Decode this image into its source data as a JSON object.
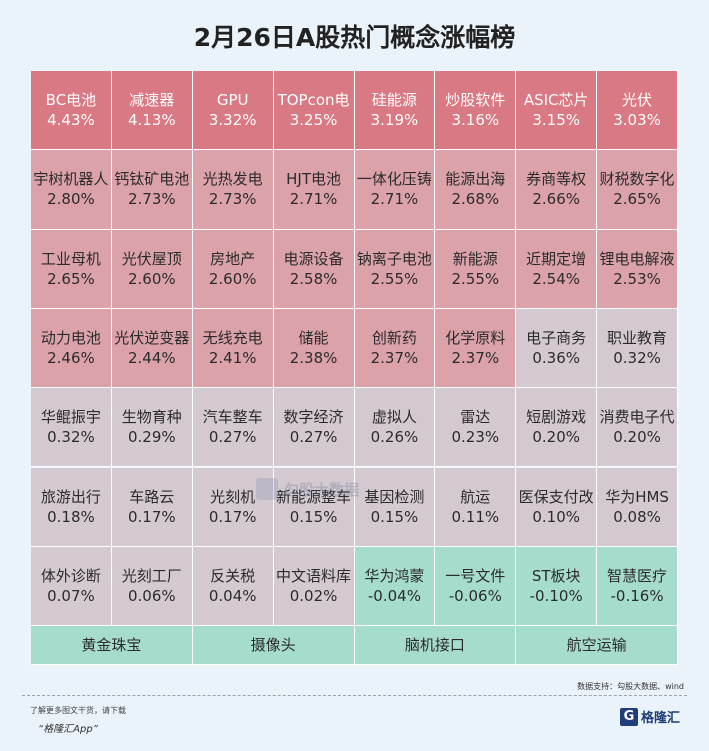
{
  "title": "2月26日A股热门概念涨幅榜",
  "colors": {
    "hot": "#d97983",
    "warm": "#dca2aa",
    "mild": "#d4c9d0",
    "neg": "#a6dcce",
    "flat": "#a6dcce",
    "background": "#eaf2fa"
  },
  "chart_data": {
    "type": "heatmap",
    "unit": "%",
    "cells": [
      {
        "name": "BC电池",
        "pct": "4.43%",
        "value": 4.43
      },
      {
        "name": "减速器",
        "pct": "4.13%",
        "value": 4.13
      },
      {
        "name": "GPU",
        "pct": "3.32%",
        "value": 3.32
      },
      {
        "name": "TOPcon电",
        "pct": "3.25%",
        "value": 3.25
      },
      {
        "name": "硅能源",
        "pct": "3.19%",
        "value": 3.19
      },
      {
        "name": "炒股软件",
        "pct": "3.16%",
        "value": 3.16
      },
      {
        "name": "ASIC芯片",
        "pct": "3.15%",
        "value": 3.15
      },
      {
        "name": "光伏",
        "pct": "3.03%",
        "value": 3.03
      },
      {
        "name": "宇树机器人",
        "pct": "2.80%",
        "value": 2.8
      },
      {
        "name": "钙钛矿电池",
        "pct": "2.73%",
        "value": 2.73
      },
      {
        "name": "光热发电",
        "pct": "2.73%",
        "value": 2.73
      },
      {
        "name": "HJT电池",
        "pct": "2.71%",
        "value": 2.71
      },
      {
        "name": "一体化压铸",
        "pct": "2.71%",
        "value": 2.71
      },
      {
        "name": "能源出海",
        "pct": "2.68%",
        "value": 2.68
      },
      {
        "name": "券商等权",
        "pct": "2.66%",
        "value": 2.66
      },
      {
        "name": "财税数字化",
        "pct": "2.65%",
        "value": 2.65
      },
      {
        "name": "工业母机",
        "pct": "2.65%",
        "value": 2.65
      },
      {
        "name": "光伏屋顶",
        "pct": "2.60%",
        "value": 2.6
      },
      {
        "name": "房地产",
        "pct": "2.60%",
        "value": 2.6
      },
      {
        "name": "电源设备",
        "pct": "2.58%",
        "value": 2.58
      },
      {
        "name": "钠离子电池",
        "pct": "2.55%",
        "value": 2.55
      },
      {
        "name": "新能源",
        "pct": "2.55%",
        "value": 2.55
      },
      {
        "name": "近期定增",
        "pct": "2.54%",
        "value": 2.54
      },
      {
        "name": "锂电电解液",
        "pct": "2.53%",
        "value": 2.53
      },
      {
        "name": "动力电池",
        "pct": "2.46%",
        "value": 2.46
      },
      {
        "name": "光伏逆变器",
        "pct": "2.44%",
        "value": 2.44
      },
      {
        "name": "无线充电",
        "pct": "2.41%",
        "value": 2.41
      },
      {
        "name": "储能",
        "pct": "2.38%",
        "value": 2.38
      },
      {
        "name": "创新药",
        "pct": "2.37%",
        "value": 2.37
      },
      {
        "name": "化学原料",
        "pct": "2.37%",
        "value": 2.37
      },
      {
        "name": "电子商务",
        "pct": "0.36%",
        "value": 0.36
      },
      {
        "name": "职业教育",
        "pct": "0.32%",
        "value": 0.32
      },
      {
        "name": "华鲲振宇",
        "pct": "0.32%",
        "value": 0.32
      },
      {
        "name": "生物育种",
        "pct": "0.29%",
        "value": 0.29
      },
      {
        "name": "汽车整车",
        "pct": "0.27%",
        "value": 0.27
      },
      {
        "name": "数字经济",
        "pct": "0.27%",
        "value": 0.27
      },
      {
        "name": "虚拟人",
        "pct": "0.26%",
        "value": 0.26
      },
      {
        "name": "雷达",
        "pct": "0.23%",
        "value": 0.23
      },
      {
        "name": "短剧游戏",
        "pct": "0.20%",
        "value": 0.2
      },
      {
        "name": "消费电子代",
        "pct": "0.20%",
        "value": 0.2
      },
      {
        "name": "旅游出行",
        "pct": "0.18%",
        "value": 0.18
      },
      {
        "name": "车路云",
        "pct": "0.17%",
        "value": 0.17
      },
      {
        "name": "光刻机",
        "pct": "0.17%",
        "value": 0.17
      },
      {
        "name": "新能源整车",
        "pct": "0.15%",
        "value": 0.15
      },
      {
        "name": "基因检测",
        "pct": "0.15%",
        "value": 0.15
      },
      {
        "name": "航运",
        "pct": "0.11%",
        "value": 0.11
      },
      {
        "name": "医保支付改",
        "pct": "0.10%",
        "value": 0.1
      },
      {
        "name": "华为HMS",
        "pct": "0.08%",
        "value": 0.08
      },
      {
        "name": "体外诊断",
        "pct": "0.07%",
        "value": 0.07
      },
      {
        "name": "光刻工厂",
        "pct": "0.06%",
        "value": 0.06
      },
      {
        "name": "反关税",
        "pct": "0.04%",
        "value": 0.04
      },
      {
        "name": "中文语料库",
        "pct": "0.02%",
        "value": 0.02
      },
      {
        "name": "华为鸿蒙",
        "pct": "-0.04%",
        "value": -0.04
      },
      {
        "name": "一号文件",
        "pct": "-0.06%",
        "value": -0.06
      },
      {
        "name": "ST板块",
        "pct": "-0.10%",
        "value": -0.1
      },
      {
        "name": "智慧医疗",
        "pct": "-0.16%",
        "value": -0.16
      }
    ],
    "flat_row": [
      "黄金珠宝",
      "摄像头",
      "脑机接口",
      "航空运输"
    ]
  },
  "source": "数据支持：勾股大数据、wind",
  "footer": {
    "line1": "了解更多图文干货，请下载",
    "line2": "“格隆汇App”"
  },
  "logo": {
    "brand": "格隆汇"
  },
  "watermark": {
    "text": "勾股大数据"
  }
}
